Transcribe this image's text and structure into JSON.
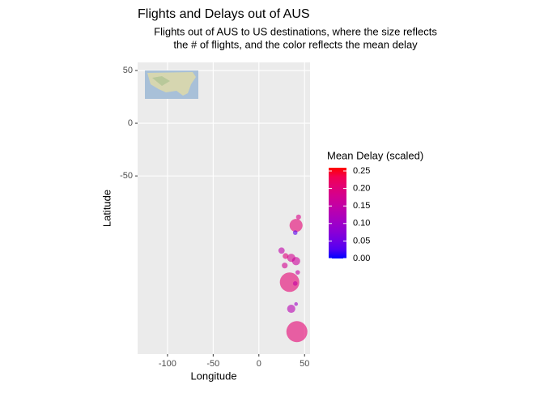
{
  "chart_data": {
    "type": "scatter",
    "title": "Flights and Delays out of AUS",
    "subtitle": [
      "Flights out of AUS to US destinations, where the size reflects",
      "the # of flights, and the color reflects the mean delay"
    ],
    "x_label": "Longitude",
    "y_label": "Latitude",
    "xlim": [
      -132.7,
      56
    ],
    "ylim": [
      57.7,
      -219
    ],
    "xticks": [
      -100,
      -50,
      0,
      50
    ],
    "yticks": [
      50,
      0,
      -50
    ],
    "grid": true,
    "color_low": "#0000FF",
    "color_high": "#FF0000",
    "legend_title": "Mean Delay (scaled)",
    "color_lim": [
      0,
      0.25
    ],
    "color_ticks": [
      {
        "value": 0,
        "label": "0.00"
      },
      {
        "value": 0.05,
        "label": "0.05"
      },
      {
        "value": 0.1,
        "label": "0.10"
      },
      {
        "value": 0.15,
        "label": "0.15"
      },
      {
        "value": 0.2,
        "label": "0.20"
      },
      {
        "value": 0.25,
        "label": "0.25"
      }
    ],
    "x": [
      40.7,
      43.4,
      39.8,
      24.8,
      35.4,
      29.2,
      28.3,
      40.7,
      42.5,
      33.6,
      39.8,
      35.4,
      40.7,
      41.6
    ],
    "values": [
      -96.9,
      -89,
      -103.8,
      -120.8,
      -127.7,
      -126,
      -135,
      -130.8,
      -141.5,
      -150.8,
      -152,
      -176,
      -171.5,
      -197.7
    ],
    "size": [
      900,
      80,
      60,
      150,
      300,
      120,
      120,
      300,
      60,
      2200,
      60,
      300,
      30,
      2600
    ],
    "delay": [
      0.2,
      0.18,
      0.03,
      0.14,
      0.17,
      0.19,
      0.17,
      0.16,
      0.15,
      0.2,
      0.15,
      0.13,
      0.1,
      0.2
    ]
  }
}
